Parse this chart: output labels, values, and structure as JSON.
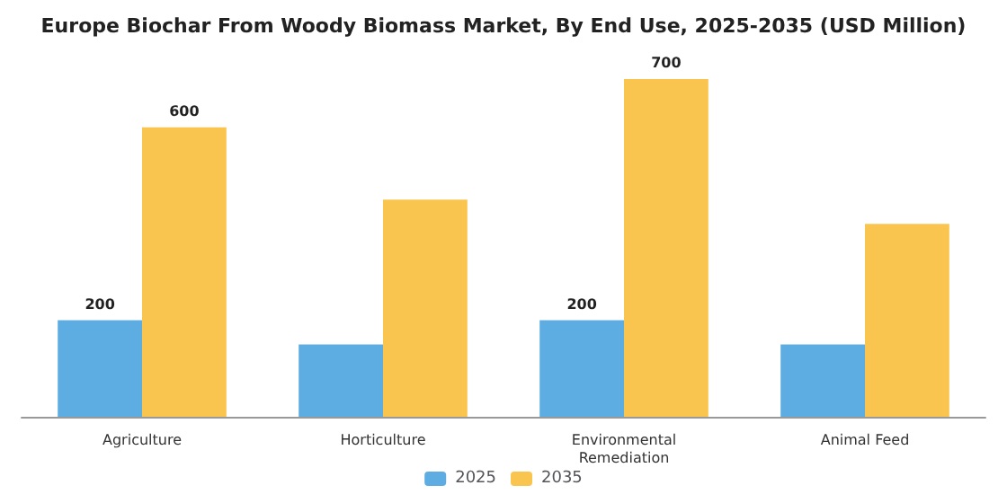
{
  "chart_data": {
    "type": "bar",
    "title": "Europe Biochar From Woody Biomass Market, By End Use, 2025-2035 (USD Million)",
    "categories": [
      "Agriculture",
      "Horticulture",
      "Environmental\nRemediation",
      "Animal Feed"
    ],
    "series": [
      {
        "name": "2025",
        "color": "#5dade2",
        "values": [
          200,
          150,
          200,
          150
        ],
        "value_labels": [
          "200",
          null,
          "200",
          null
        ]
      },
      {
        "name": "2035",
        "color": "#f9c54e",
        "values": [
          600,
          450,
          700,
          400
        ],
        "value_labels": [
          "600",
          null,
          "700",
          null
        ]
      }
    ],
    "legend": "bottom"
  }
}
